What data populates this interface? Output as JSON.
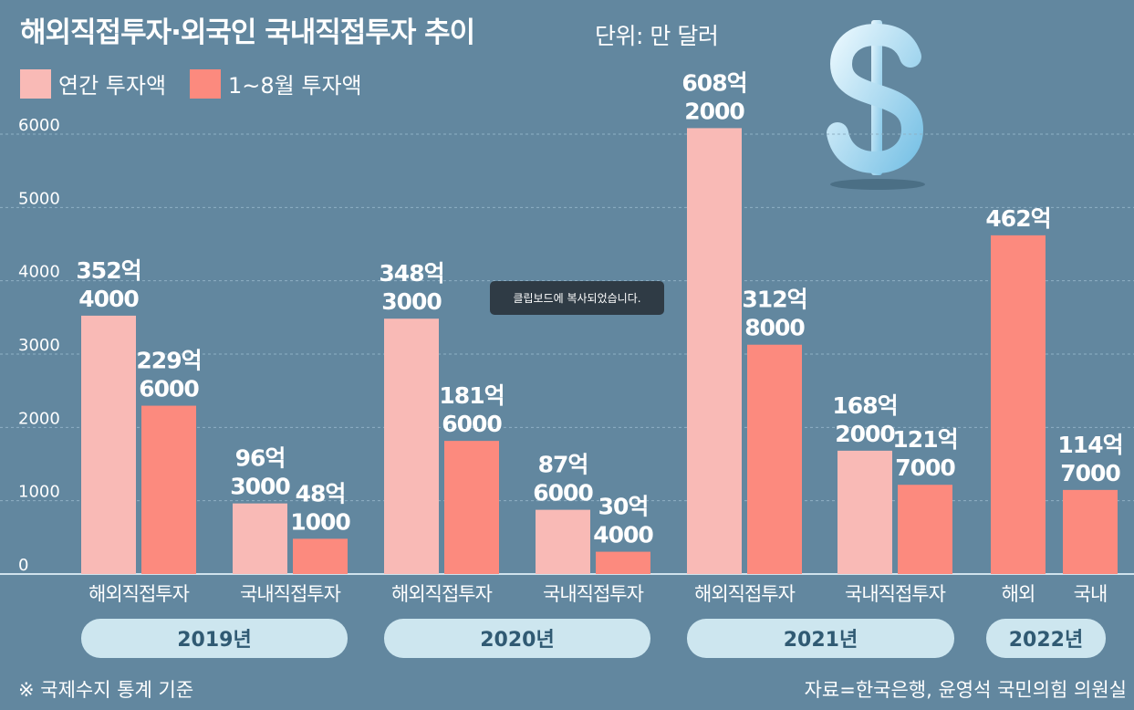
{
  "header": {
    "title": "해외직접투자·외국인 국내직접투자 추이",
    "unit": "단위: 만 달러"
  },
  "colors": {
    "background": "#62879f",
    "annual": "#f9bab6",
    "jan_aug": "#fc8a7e",
    "year_pill": "#cde6ef",
    "year_text": "#305a73"
  },
  "icons": {
    "dollar": "dollar-sign-icon"
  },
  "toast": {
    "text": "클립보드에 복사되었습니다."
  },
  "footer": {
    "note": "※ 국제수지 통계 기준",
    "source": "자료=한국은행, 윤영석 국민의힘 의원실"
  },
  "chart_data": {
    "type": "bar",
    "ylim": [
      0,
      6000
    ],
    "yticks": [
      "6000",
      "5000",
      "4000",
      "3000",
      "2000",
      "1000",
      "0"
    ],
    "grid": true,
    "legend": [
      {
        "name": "연간 투자액",
        "color": "#f9bab6"
      },
      {
        "name": "1~8월 투자액",
        "color": "#fc8a7e"
      }
    ],
    "groups": [
      {
        "year": "2019년",
        "categories": [
          {
            "name": "해외직접투자",
            "bars": [
              {
                "series": "연간 투자액",
                "value": 3524,
                "label": [
                  "352억",
                  "4000"
                ]
              },
              {
                "series": "1~8월 투자액",
                "value": 2296,
                "label": [
                  "229억",
                  "6000"
                ]
              }
            ]
          },
          {
            "name": "국내직접투자",
            "bars": [
              {
                "series": "연간 투자액",
                "value": 963,
                "label": [
                  "96억",
                  "3000"
                ]
              },
              {
                "series": "1~8월 투자액",
                "value": 481,
                "label": [
                  "48억",
                  "1000"
                ]
              }
            ]
          }
        ]
      },
      {
        "year": "2020년",
        "categories": [
          {
            "name": "해외직접투자",
            "bars": [
              {
                "series": "연간 투자액",
                "value": 3483,
                "label": [
                  "348억",
                  "3000"
                ]
              },
              {
                "series": "1~8월 투자액",
                "value": 1816,
                "label": [
                  "181억",
                  "6000"
                ]
              }
            ]
          },
          {
            "name": "국내직접투자",
            "bars": [
              {
                "series": "연간 투자액",
                "value": 876,
                "label": [
                  "87억",
                  "6000"
                ]
              },
              {
                "series": "1~8월 투자액",
                "value": 304,
                "label": [
                  "30억",
                  "4000"
                ]
              }
            ]
          }
        ]
      },
      {
        "year": "2021년",
        "categories": [
          {
            "name": "해외직접투자",
            "bars": [
              {
                "series": "연간 투자액",
                "value": 6082,
                "label": [
                  "608억",
                  "2000"
                ]
              },
              {
                "series": "1~8월 투자액",
                "value": 3128,
                "label": [
                  "312억",
                  "8000"
                ]
              }
            ]
          },
          {
            "name": "국내직접투자",
            "bars": [
              {
                "series": "연간 투자액",
                "value": 1682,
                "label": [
                  "168억",
                  "2000"
                ]
              },
              {
                "series": "1~8월 투자액",
                "value": 1217,
                "label": [
                  "121억",
                  "7000"
                ]
              }
            ]
          }
        ]
      },
      {
        "year": "2022년",
        "categories": [
          {
            "name": "해외",
            "bars": [
              {
                "series": "1~8월 투자액",
                "value": 4620,
                "label": [
                  "462억"
                ]
              }
            ]
          },
          {
            "name": "국내",
            "bars": [
              {
                "series": "1~8월 투자액",
                "value": 1147,
                "label": [
                  "114억",
                  "7000"
                ]
              }
            ]
          }
        ]
      }
    ]
  }
}
